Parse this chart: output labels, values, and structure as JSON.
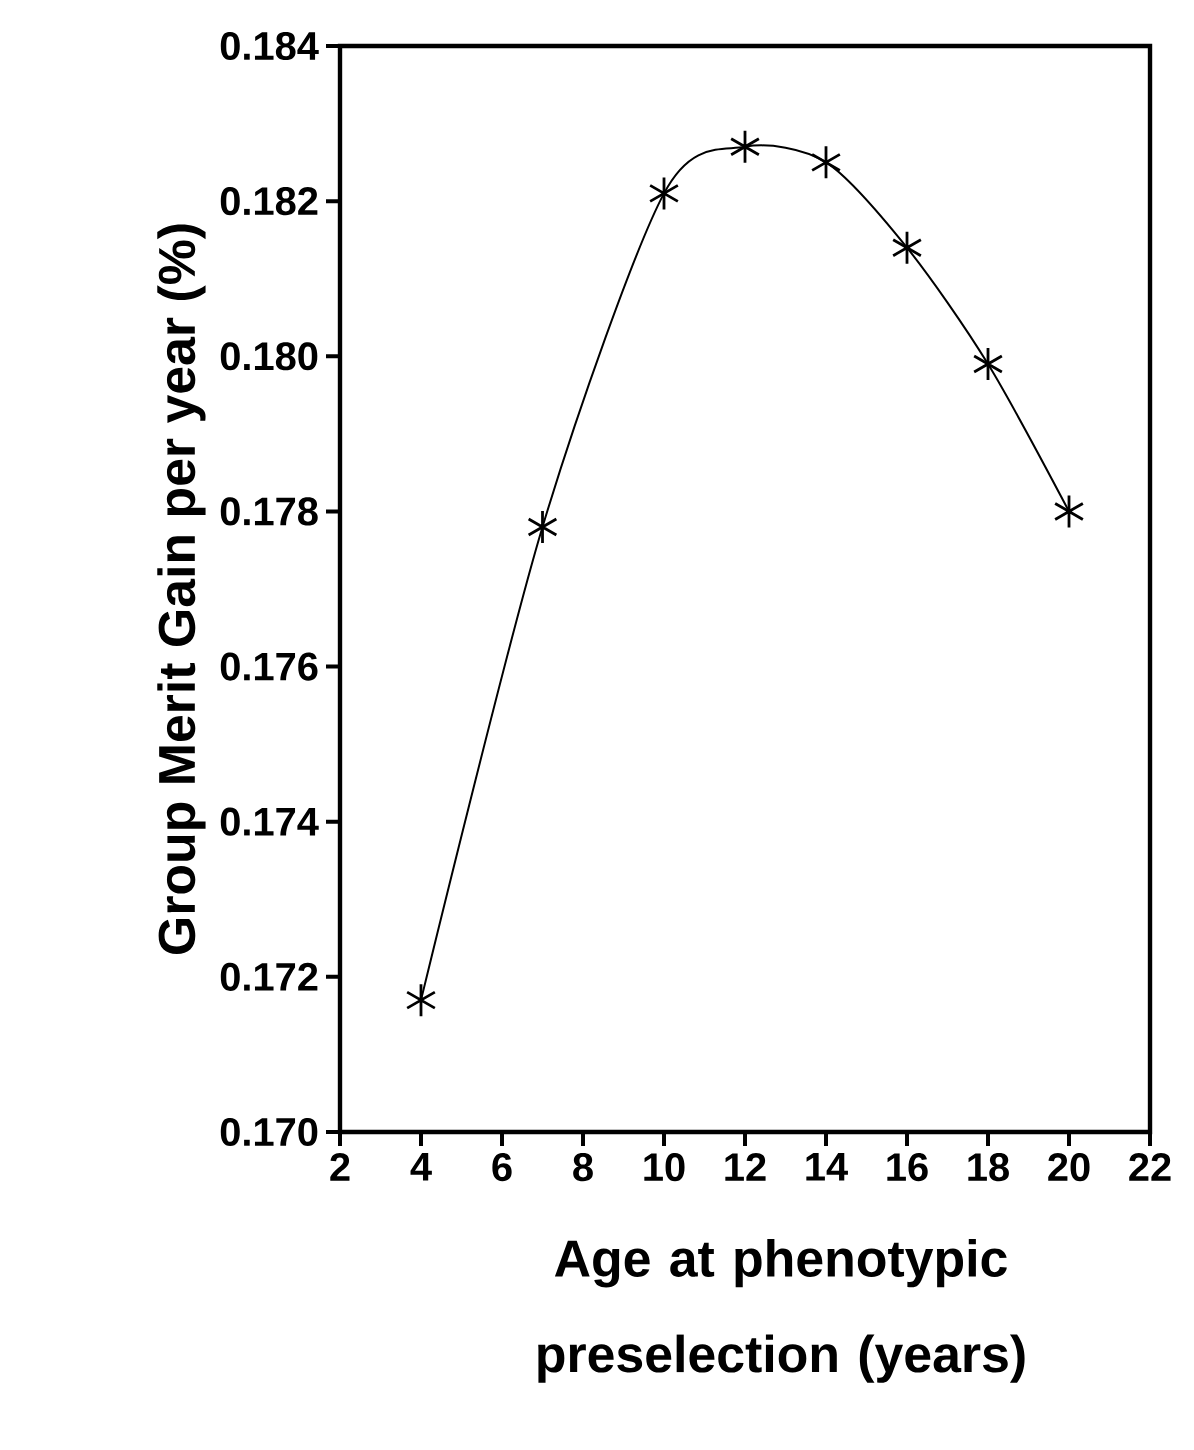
{
  "chart_data": {
    "type": "line",
    "xlabel": "Age at phenotypic preselection (years)",
    "ylabel": "Group Merit Gain per year (%)",
    "x": [
      4,
      7,
      10,
      12,
      14,
      16,
      18,
      20
    ],
    "series": [
      {
        "color": "#000000",
        "values": [
          0.1717,
          0.1778,
          0.1821,
          0.1827,
          0.1825,
          0.1814,
          0.1799,
          0.178
        ]
      }
    ],
    "xlim": [
      2,
      22
    ],
    "xticks": [
      2,
      4,
      6,
      8,
      10,
      12,
      14,
      16,
      18,
      20,
      22
    ],
    "ylim": [
      0.17,
      0.184
    ],
    "yticks": [
      {
        "value": 0.17,
        "label": "0.170"
      },
      {
        "value": 0.172,
        "label": "0.172"
      },
      {
        "value": 0.174,
        "label": "0.174"
      },
      {
        "value": 0.176,
        "label": "0.176"
      },
      {
        "value": 0.178,
        "label": "0.178"
      },
      {
        "value": 0.18,
        "label": "0.180"
      },
      {
        "value": 0.182,
        "label": "0.182"
      },
      {
        "value": 0.184,
        "label": "0.184"
      }
    ],
    "marker": "cross",
    "line_style": "solid",
    "grid": false
  }
}
